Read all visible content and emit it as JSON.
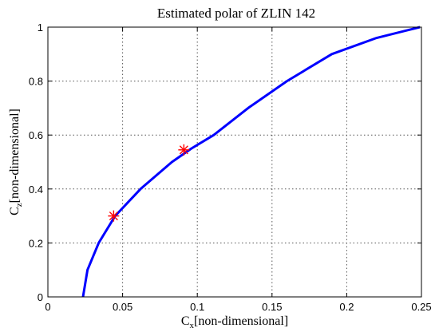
{
  "chart_data": {
    "type": "line",
    "title": "Estimated polar of ZLIN 142",
    "xlabel": {
      "symbol": "C",
      "subscript": "x",
      "text": "[non-dimensional]"
    },
    "ylabel": {
      "symbol": "C",
      "subscript": "z",
      "text": "[non-dimensional]"
    },
    "xlim": [
      0,
      0.25
    ],
    "ylim": [
      0,
      1
    ],
    "xticks": [
      "0",
      "0.05",
      "0.1",
      "0.15",
      "0.2",
      "0.25"
    ],
    "yticks": [
      "0",
      "0.2",
      "0.4",
      "0.6",
      "0.8",
      "1"
    ],
    "grid": true,
    "series": [
      {
        "color": "#0000ff",
        "x": [
          0.0235,
          0.025,
          0.0265,
          0.034,
          0.045,
          0.062,
          0.083,
          0.096,
          0.111,
          0.134,
          0.16,
          0.19,
          0.22,
          0.249
        ],
        "y": [
          0.0,
          0.05,
          0.1,
          0.2,
          0.3,
          0.4,
          0.5,
          0.55,
          0.6,
          0.7,
          0.8,
          0.9,
          0.96,
          1.0
        ]
      }
    ],
    "markers": [
      {
        "x": 0.044,
        "y": 0.3,
        "symbol": "asterisk",
        "color": "#ff0000"
      },
      {
        "x": 0.091,
        "y": 0.545,
        "symbol": "asterisk",
        "color": "#ff0000"
      }
    ],
    "colors": {
      "line": "#0000ff",
      "marker": "#ff0000",
      "grid": "#555555",
      "axis": "#000000"
    }
  }
}
